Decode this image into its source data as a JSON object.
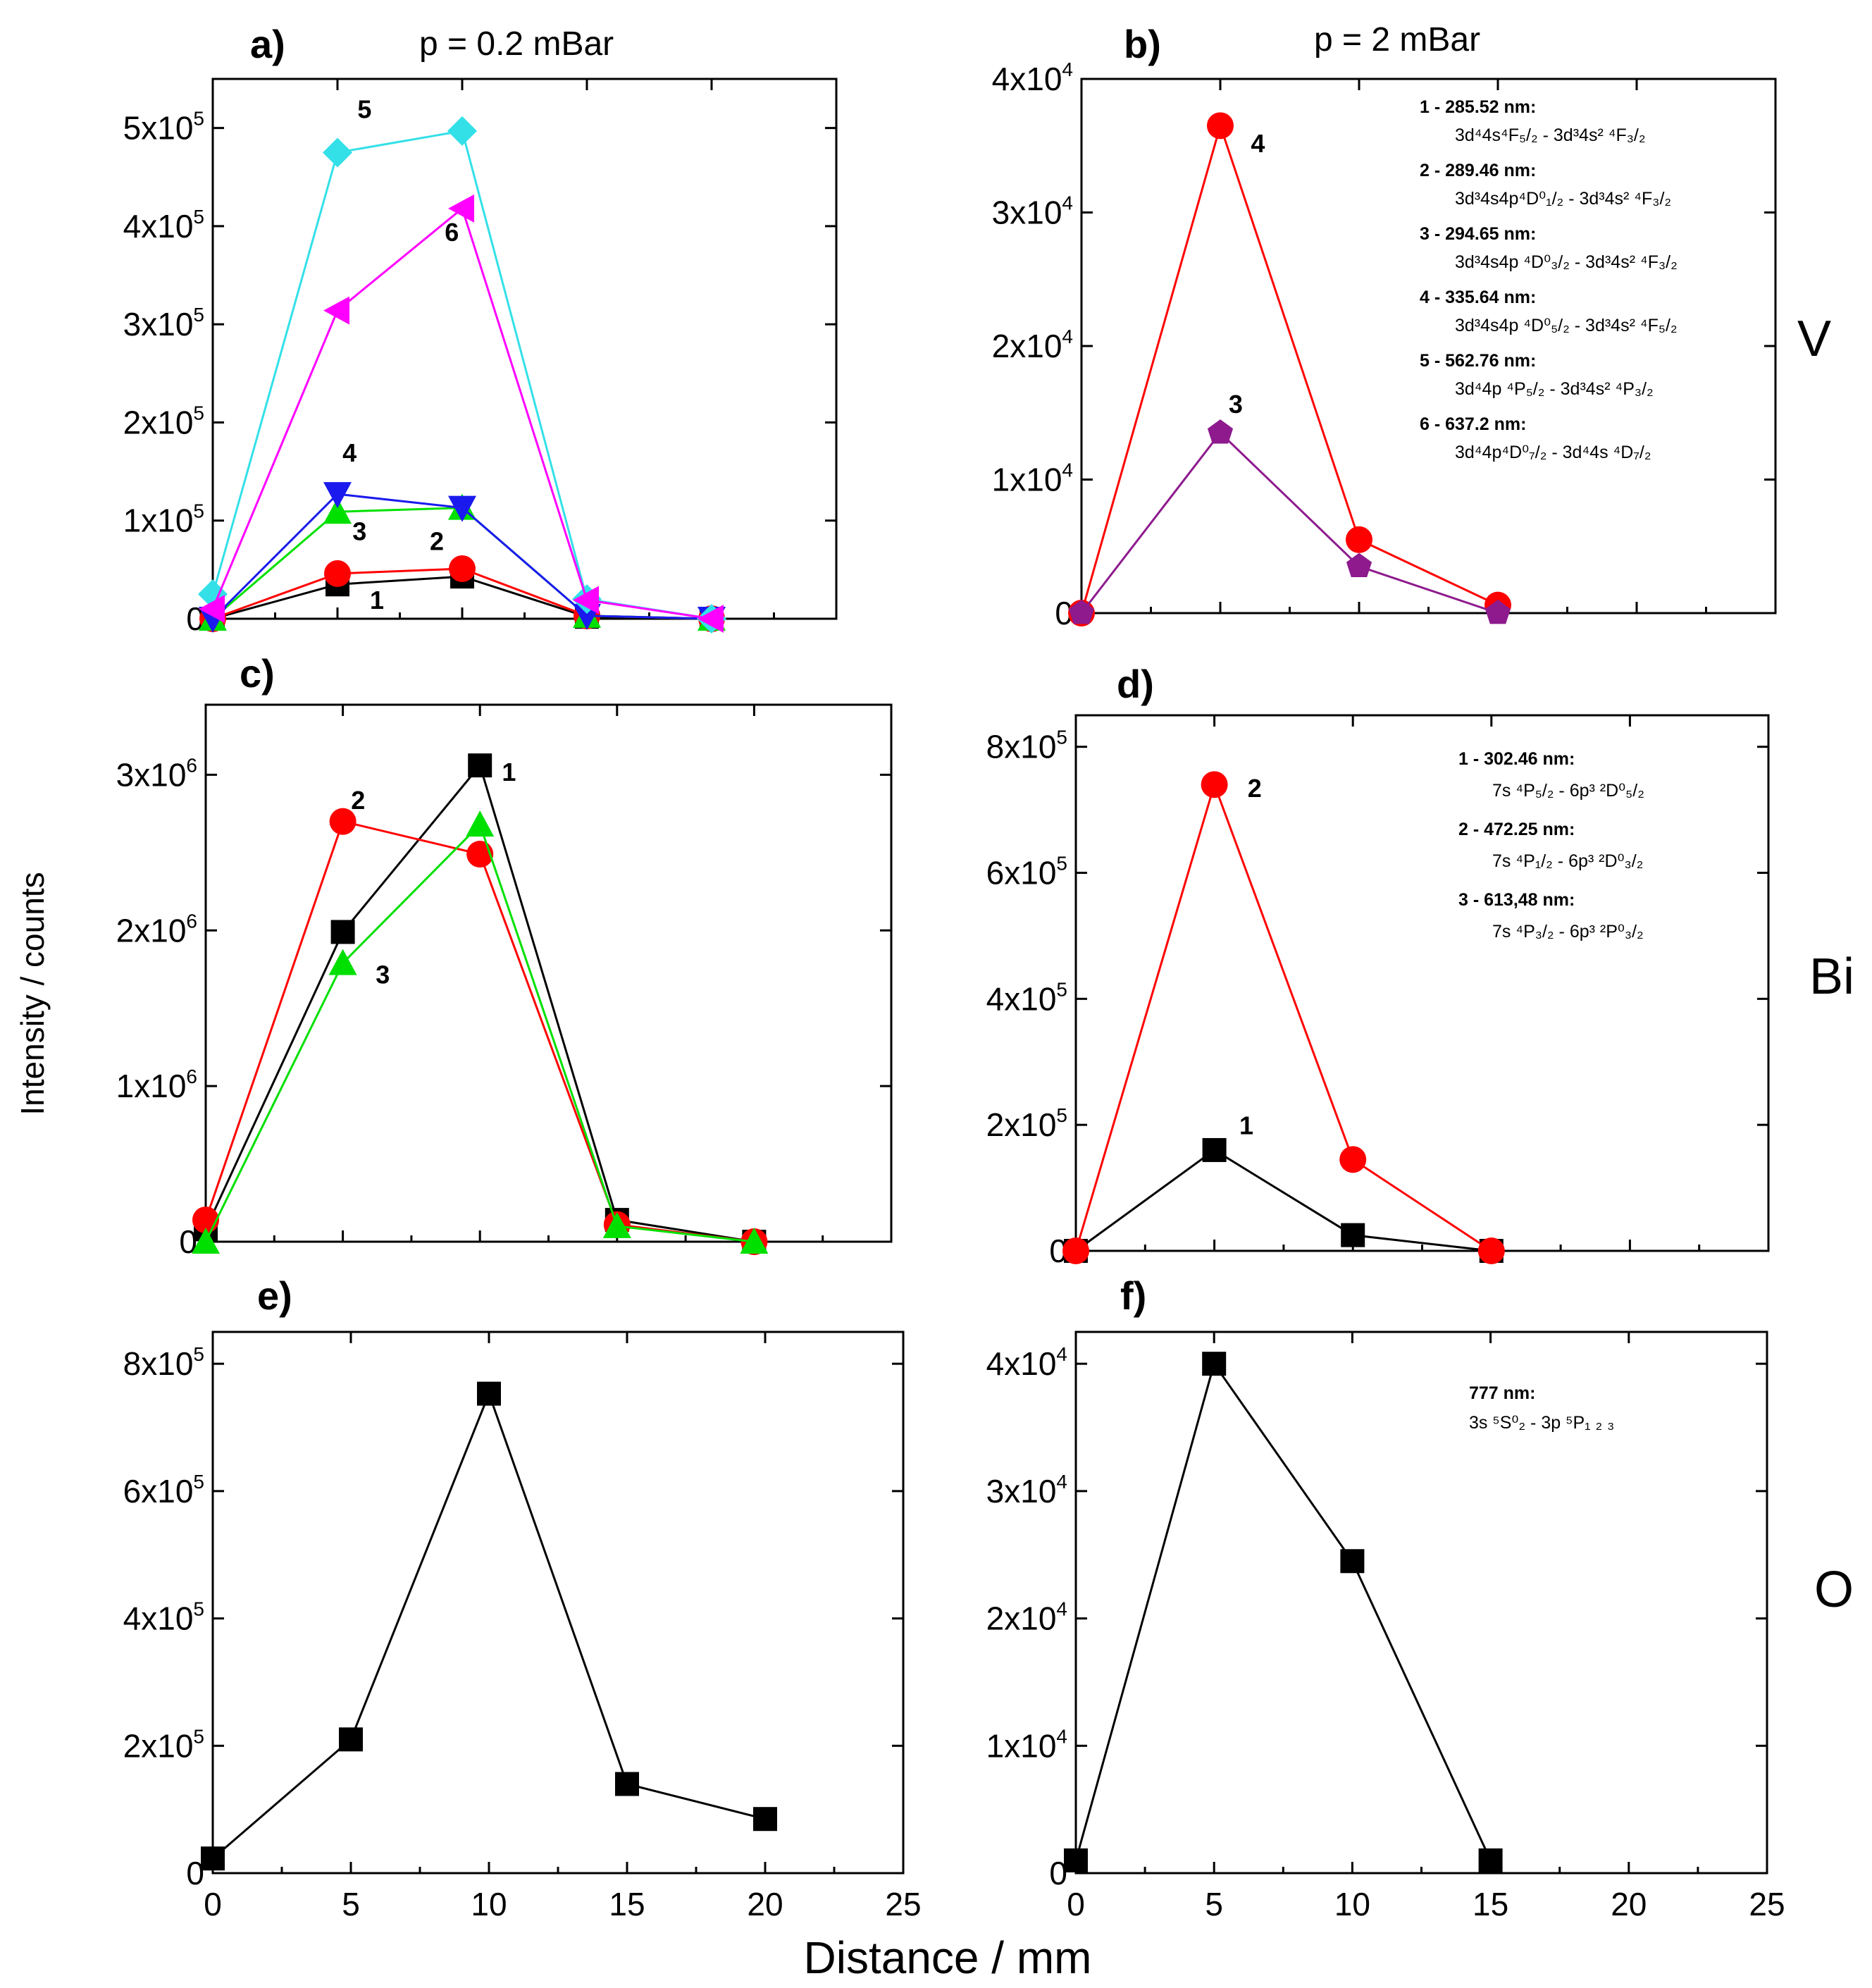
{
  "figure": {
    "pressure_labels": [
      "p = 0.2 mBar",
      "p = 2 mBar"
    ],
    "element_labels": [
      "V",
      "Bi",
      "O"
    ],
    "ylabel": "Intensity / counts",
    "xlabel": "Distance / mm",
    "colors": {
      "black": "#000000",
      "red": "#ff0000",
      "green": "#00e000",
      "blue": "#1a1aee",
      "cyan": "#33e0e8",
      "magenta": "#ff00ff",
      "purple": "#8e1a8e"
    }
  },
  "chart_data": [
    {
      "panel": "a)",
      "type": "line",
      "element": "V",
      "pressure": "p = 0.2 mBar",
      "xlim": [
        0,
        25
      ],
      "ylim": [
        0,
        550000
      ],
      "xticks": [
        0,
        5,
        10,
        15,
        20,
        25
      ],
      "show_xticklabels": false,
      "yticks": [
        {
          "value": 0,
          "mantissa": "0",
          "exp": ""
        },
        {
          "value": 100000,
          "mantissa": "1x10",
          "exp": "5"
        },
        {
          "value": 200000,
          "mantissa": "2x10",
          "exp": "5"
        },
        {
          "value": 300000,
          "mantissa": "3x10",
          "exp": "5"
        },
        {
          "value": 400000,
          "mantissa": "4x10",
          "exp": "5"
        },
        {
          "value": 500000,
          "mantissa": "5x10",
          "exp": "5"
        }
      ],
      "series": [
        {
          "name": "1",
          "marker": "square",
          "color": "#000000",
          "x": [
            0,
            5,
            10,
            15,
            20
          ],
          "y": [
            0,
            35000,
            43000,
            2000,
            0
          ],
          "label": "1",
          "label_x": 6.3,
          "label_y": 10000
        },
        {
          "name": "2",
          "marker": "circle",
          "color": "#ff0000",
          "x": [
            0,
            5,
            10,
            15,
            20
          ],
          "y": [
            0,
            46000,
            51000,
            3000,
            0
          ],
          "label": "2",
          "label_x": 8.7,
          "label_y": 70000
        },
        {
          "name": "3",
          "marker": "triangle-up",
          "color": "#00e000",
          "x": [
            0,
            5,
            10,
            15,
            20
          ],
          "y": [
            0,
            109000,
            113000,
            3000,
            0
          ],
          "label": "3",
          "label_x": 5.6,
          "label_y": 80000
        },
        {
          "name": "4",
          "marker": "triangle-down",
          "color": "#1a1aee",
          "x": [
            0,
            5,
            10,
            15,
            20
          ],
          "y": [
            0,
            127000,
            113000,
            3000,
            0
          ],
          "label": "4",
          "label_x": 5.2,
          "label_y": 160000
        },
        {
          "name": "5",
          "marker": "diamond",
          "color": "#33e0e8",
          "x": [
            0,
            5,
            10,
            15,
            20
          ],
          "y": [
            25000,
            475000,
            497000,
            20000,
            0
          ],
          "label": "5",
          "label_x": 5.8,
          "label_y": 510000
        },
        {
          "name": "6",
          "marker": "triangle-left",
          "color": "#ff00ff",
          "x": [
            0,
            5,
            10,
            15,
            20
          ],
          "y": [
            10000,
            314000,
            418000,
            19000,
            0
          ],
          "label": "6",
          "label_x": 9.3,
          "label_y": 385000
        }
      ]
    },
    {
      "panel": "b)",
      "type": "line",
      "element": "V",
      "pressure": "p = 2 mBar",
      "xlim": [
        0,
        25
      ],
      "ylim": [
        0,
        40000
      ],
      "xticks": [
        0,
        5,
        10,
        15,
        20,
        25
      ],
      "show_xticklabels": false,
      "yticks": [
        {
          "value": 0,
          "mantissa": "0",
          "exp": ""
        },
        {
          "value": 10000,
          "mantissa": "1x10",
          "exp": "4"
        },
        {
          "value": 20000,
          "mantissa": "2x10",
          "exp": "4"
        },
        {
          "value": 30000,
          "mantissa": "3x10",
          "exp": "4"
        },
        {
          "value": 40000,
          "mantissa": "4x10",
          "exp": "4"
        }
      ],
      "series": [
        {
          "name": "4",
          "marker": "circle",
          "color": "#ff0000",
          "x": [
            0,
            5,
            10,
            15
          ],
          "y": [
            0,
            36500,
            5500,
            600
          ],
          "label": "4",
          "label_x": 6.1,
          "label_y": 34500
        },
        {
          "name": "3",
          "marker": "pentagon",
          "color": "#8e1a8e",
          "x": [
            0,
            5,
            10,
            15
          ],
          "y": [
            0,
            13500,
            3500,
            0
          ],
          "label": "3",
          "label_x": 5.3,
          "label_y": 15000
        }
      ],
      "legend": [
        {
          "head": "1 - 285.52 nm:",
          "transition": "3d⁴4s⁴F₅/₂ - 3d³4s² ⁴F₃/₂"
        },
        {
          "head": "2 - 289.46 nm:",
          "transition": "3d³4s4p⁴D⁰₁/₂ - 3d³4s² ⁴F₃/₂"
        },
        {
          "head": "3 - 294.65 nm:",
          "transition": "3d³4s4p ⁴D⁰₃/₂ - 3d³4s² ⁴F₃/₂"
        },
        {
          "head": "4 - 335.64 nm:",
          "transition": "3d³4s4p ⁴D⁰₅/₂ - 3d³4s² ⁴F₅/₂"
        },
        {
          "head": "5 - 562.76 nm:",
          "transition": "3d⁴4p ⁴P₅/₂ -  3d³4s² ⁴P₃/₂"
        },
        {
          "head": "6 - 637.2  nm:",
          "transition": "3d⁴4p⁴D⁰₇/₂ - 3d⁴4s ⁴D₇/₂"
        }
      ]
    },
    {
      "panel": "c)",
      "type": "line",
      "element": "Bi",
      "pressure": "p = 0.2 mBar",
      "xlim": [
        0,
        25
      ],
      "ylim": [
        0,
        3450000
      ],
      "xticks": [
        0,
        5,
        10,
        15,
        20,
        25
      ],
      "show_xticklabels": false,
      "yticks": [
        {
          "value": 0,
          "mantissa": "0",
          "exp": ""
        },
        {
          "value": 1000000,
          "mantissa": "1x10",
          "exp": "6"
        },
        {
          "value": 2000000,
          "mantissa": "2x10",
          "exp": "6"
        },
        {
          "value": 3000000,
          "mantissa": "3x10",
          "exp": "6"
        }
      ],
      "series": [
        {
          "name": "1",
          "marker": "square",
          "color": "#000000",
          "x": [
            0,
            5,
            10,
            15,
            20
          ],
          "y": [
            80000,
            1990000,
            3060000,
            140000,
            0
          ],
          "label": "1",
          "label_x": 10.8,
          "label_y": 2960000
        },
        {
          "name": "2",
          "marker": "circle",
          "color": "#ff0000",
          "x": [
            0,
            5,
            10,
            15,
            20
          ],
          "y": [
            140000,
            2700000,
            2490000,
            110000,
            0
          ],
          "label": "2",
          "label_x": 5.3,
          "label_y": 2780000
        },
        {
          "name": "3",
          "marker": "triangle-up",
          "color": "#00e000",
          "x": [
            0,
            5,
            10,
            15,
            20
          ],
          "y": [
            0,
            1790000,
            2680000,
            100000,
            0
          ],
          "label": "3",
          "label_x": 6.2,
          "label_y": 1660000
        }
      ]
    },
    {
      "panel": "d)",
      "type": "line",
      "element": "Bi",
      "pressure": "p = 2 mBar",
      "xlim": [
        0,
        25
      ],
      "ylim": [
        0,
        850000
      ],
      "xticks": [
        0,
        5,
        10,
        15,
        20,
        25
      ],
      "show_xticklabels": false,
      "yticks": [
        {
          "value": 0,
          "mantissa": "0",
          "exp": ""
        },
        {
          "value": 200000,
          "mantissa": "2x10",
          "exp": "5"
        },
        {
          "value": 400000,
          "mantissa": "4x10",
          "exp": "5"
        },
        {
          "value": 600000,
          "mantissa": "6x10",
          "exp": "5"
        },
        {
          "value": 800000,
          "mantissa": "8x10",
          "exp": "5"
        }
      ],
      "series": [
        {
          "name": "1",
          "marker": "square",
          "color": "#000000",
          "x": [
            0,
            5,
            10,
            15
          ],
          "y": [
            0,
            160000,
            25000,
            0
          ],
          "label": "1",
          "label_x": 5.9,
          "label_y": 185000
        },
        {
          "name": "2",
          "marker": "circle",
          "color": "#ff0000",
          "x": [
            0,
            5,
            10,
            15
          ],
          "y": [
            0,
            740000,
            145000,
            0
          ],
          "label": "2",
          "label_x": 6.2,
          "label_y": 720000
        }
      ],
      "legend": [
        {
          "head": "1 - 302.46 nm:",
          "transition": "7s ⁴P₅/₂ - 6p³ ²D⁰₅/₂"
        },
        {
          "head": "2 - 472.25 nm:",
          "transition": "7s ⁴P₁/₂ - 6p³ ²D⁰₃/₂"
        },
        {
          "head": "3 - 613,48 nm:",
          "transition": "7s ⁴P₃/₂ - 6p³ ²P⁰₃/₂"
        }
      ]
    },
    {
      "panel": "e)",
      "type": "line",
      "element": "O",
      "pressure": "p = 0.2 mBar",
      "xlim": [
        0,
        25
      ],
      "ylim": [
        0,
        850000
      ],
      "xticks": [
        0,
        5,
        10,
        15,
        20,
        25
      ],
      "show_xticklabels": true,
      "yticks": [
        {
          "value": 0,
          "mantissa": "0",
          "exp": ""
        },
        {
          "value": 200000,
          "mantissa": "2x10",
          "exp": "5"
        },
        {
          "value": 400000,
          "mantissa": "4x10",
          "exp": "5"
        },
        {
          "value": 600000,
          "mantissa": "6x10",
          "exp": "5"
        },
        {
          "value": 800000,
          "mantissa": "8x10",
          "exp": "5"
        }
      ],
      "series": [
        {
          "name": "777 nm",
          "marker": "square",
          "color": "#000000",
          "x": [
            0,
            5,
            10,
            15,
            20
          ],
          "y": [
            23000,
            210000,
            753000,
            140000,
            85000
          ]
        }
      ]
    },
    {
      "panel": "f)",
      "type": "line",
      "element": "O",
      "pressure": "p = 2 mBar",
      "xlim": [
        0,
        25
      ],
      "ylim": [
        0,
        42500
      ],
      "xticks": [
        0,
        5,
        10,
        15,
        20,
        25
      ],
      "show_xticklabels": true,
      "yticks": [
        {
          "value": 0,
          "mantissa": "0",
          "exp": ""
        },
        {
          "value": 10000,
          "mantissa": "1x10",
          "exp": "4"
        },
        {
          "value": 20000,
          "mantissa": "2x10",
          "exp": "4"
        },
        {
          "value": 30000,
          "mantissa": "3x10",
          "exp": "4"
        },
        {
          "value": 40000,
          "mantissa": "4x10",
          "exp": "4"
        }
      ],
      "series": [
        {
          "name": "777 nm",
          "marker": "square",
          "color": "#000000",
          "x": [
            0,
            5,
            10,
            15
          ],
          "y": [
            1000,
            40000,
            24500,
            1000
          ]
        }
      ],
      "legend": [
        {
          "head": "777 nm:",
          "transition": "3s ⁵S⁰₂ - 3p ⁵P₁ ₂ ₃"
        }
      ]
    }
  ]
}
